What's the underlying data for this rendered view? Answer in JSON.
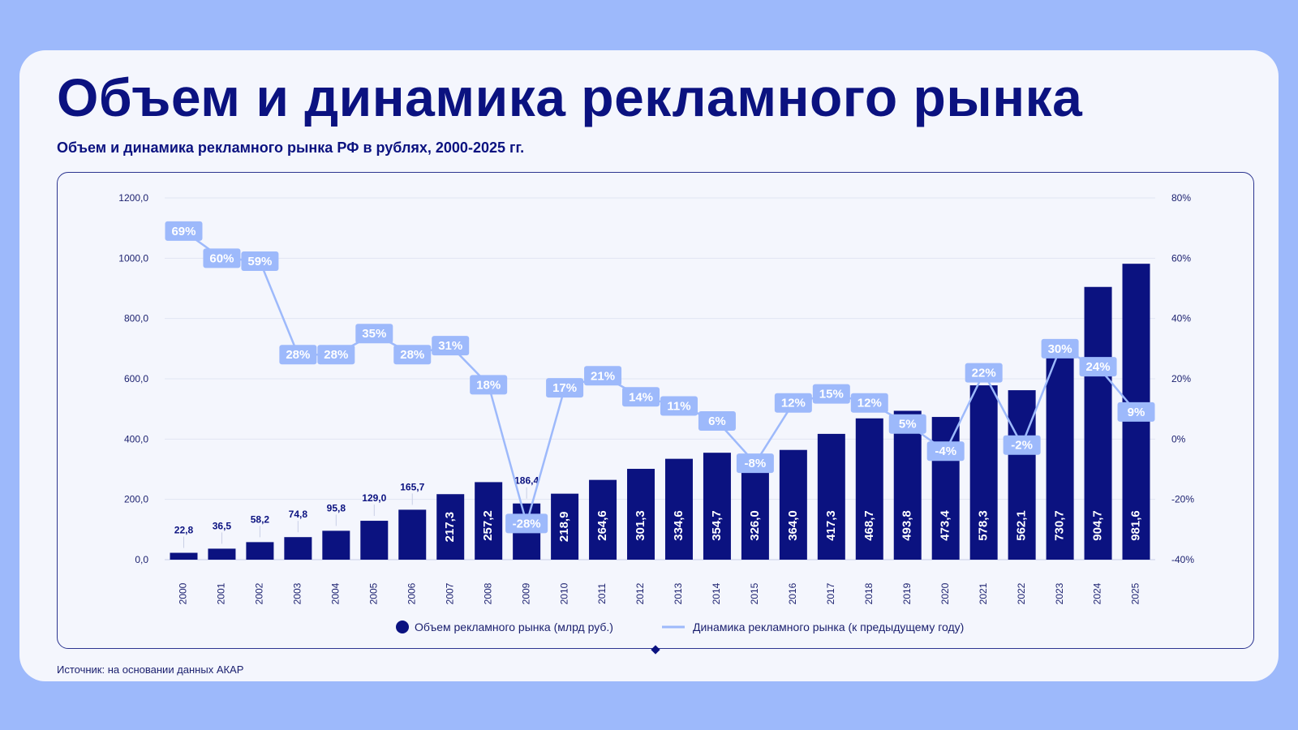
{
  "title": "Объем и динамика рекламного рынка",
  "subtitle": "Объем и динамика рекламного рынка РФ в рублях, 2000-2025 гг.",
  "source": "Источник: на основании данных АКАР",
  "colors": {
    "background": "#9db9fb",
    "card": "#f4f6fd",
    "bar": "#0b1280",
    "line": "#9db9fb",
    "line_label_text": "#ffffff",
    "text": "#0b1280"
  },
  "chart_data": {
    "type": "bar",
    "categories": [
      "2000",
      "2001",
      "2002",
      "2003",
      "2004",
      "2005",
      "2006",
      "2007",
      "2008",
      "2009",
      "2010",
      "2011",
      "2012",
      "2013",
      "2014",
      "2015",
      "2016",
      "2017",
      "2018",
      "2019",
      "2020",
      "2021",
      "2022",
      "2023",
      "2024",
      "2025"
    ],
    "series": [
      {
        "name": "Объем рекламного рынка (млрд руб.)",
        "type": "bar",
        "axis": "left",
        "values": [
          22.8,
          36.5,
          58.2,
          74.8,
          95.8,
          129.0,
          165.7,
          217.3,
          257.2,
          186.4,
          218.9,
          264.6,
          301.3,
          334.6,
          354.7,
          326.0,
          364.0,
          417.3,
          468.7,
          493.8,
          473.4,
          578.3,
          562.1,
          730.7,
          904.7,
          981.6
        ],
        "labels": [
          "22,8",
          "36,5",
          "58,2",
          "74,8",
          "95,8",
          "129,0",
          "165,7",
          "217,3",
          "257,2",
          "186,4",
          "218,9",
          "264,6",
          "301,3",
          "334,6",
          "354,7",
          "326,0",
          "364,0",
          "417,3",
          "468,7",
          "493,8",
          "473,4",
          "578,3",
          "562,1",
          "730,7",
          "904,7",
          "981,6"
        ]
      },
      {
        "name": "Динамика рекламного рынка (к предыдущему году)",
        "type": "line",
        "axis": "right",
        "values": [
          69,
          60,
          59,
          28,
          28,
          35,
          28,
          31,
          18,
          -28,
          17,
          21,
          14,
          11,
          6,
          -8,
          12,
          15,
          12,
          5,
          -4,
          22,
          -2,
          30,
          24,
          9
        ],
        "labels": [
          "69%",
          "60%",
          "59%",
          "28%",
          "28%",
          "35%",
          "28%",
          "31%",
          "18%",
          "-28%",
          "17%",
          "21%",
          "14%",
          "11%",
          "6%",
          "-8%",
          "12%",
          "15%",
          "12%",
          "5%",
          "-4%",
          "22%",
          "-2%",
          "30%",
          "24%",
          "9%"
        ]
      }
    ],
    "y_left": {
      "range": [
        0,
        1200
      ],
      "ticks": [
        0,
        200,
        400,
        600,
        800,
        1000,
        1200
      ],
      "tick_labels": [
        "0,0",
        "200,0",
        "400,0",
        "600,0",
        "800,0",
        "1000,0",
        "1200,0"
      ]
    },
    "y_right": {
      "range": [
        -40,
        80
      ],
      "ticks": [
        -40,
        -20,
        0,
        20,
        40,
        60,
        80
      ],
      "tick_labels": [
        "-40%",
        "-20%",
        "0%",
        "20%",
        "40%",
        "60%",
        "80%"
      ]
    },
    "grid": true,
    "legend_position": "bottom",
    "legend": [
      {
        "label": "Объем рекламного рынка (млрд руб.)",
        "marker": "circle"
      },
      {
        "label": "Динамика рекламного рынка (к предыдущему году)",
        "marker": "line"
      }
    ]
  }
}
